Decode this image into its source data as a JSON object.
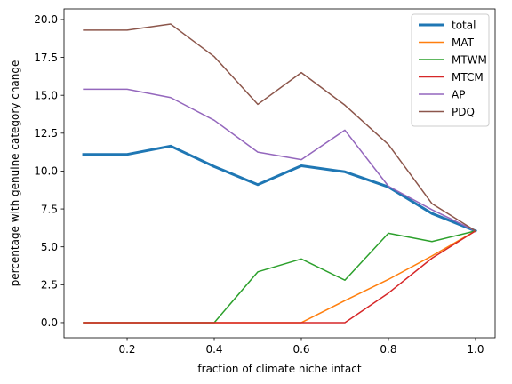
{
  "chart_data": {
    "type": "line",
    "xlabel": "fraction of climate niche intact",
    "ylabel": "percentage with genuine category change",
    "xlim": [
      0.055,
      1.045
    ],
    "ylim": [
      -1.0,
      20.7
    ],
    "x_ticks": [
      0.2,
      0.4,
      0.6,
      0.8,
      1.0
    ],
    "x_tick_labels": [
      "0.2",
      "0.4",
      "0.6",
      "0.8",
      "1.0"
    ],
    "y_ticks": [
      0.0,
      2.5,
      5.0,
      7.5,
      10.0,
      12.5,
      15.0,
      17.5,
      20.0
    ],
    "y_tick_labels": [
      "0.0",
      "2.5",
      "5.0",
      "7.5",
      "10.0",
      "12.5",
      "15.0",
      "17.5",
      "20.0"
    ],
    "grid": false,
    "legend_position": "upper-right",
    "x": [
      0.1,
      0.2,
      0.3,
      0.4,
      0.5,
      0.6,
      0.7,
      0.8,
      0.9,
      1.0
    ],
    "series": [
      {
        "name": "total",
        "color": "#1f77b4",
        "emphasis": "thick",
        "values": [
          11.1,
          11.1,
          11.65,
          10.3,
          9.1,
          10.35,
          9.95,
          8.95,
          7.2,
          6.05
        ]
      },
      {
        "name": "MAT",
        "color": "#ff7f0e",
        "emphasis": "normal",
        "values": [
          0.0,
          0.0,
          0.0,
          0.0,
          0.0,
          0.0,
          1.45,
          2.85,
          4.4,
          6.05
        ]
      },
      {
        "name": "MTWM",
        "color": "#2ca02c",
        "emphasis": "normal",
        "values": [
          0.0,
          0.0,
          0.0,
          0.0,
          3.35,
          4.2,
          2.8,
          5.9,
          5.35,
          6.05
        ]
      },
      {
        "name": "MTCM",
        "color": "#d62728",
        "emphasis": "normal",
        "values": [
          0.0,
          0.0,
          0.0,
          0.0,
          0.0,
          0.0,
          0.0,
          1.95,
          4.25,
          6.05
        ]
      },
      {
        "name": "AP",
        "color": "#9467bd",
        "emphasis": "normal",
        "values": [
          15.4,
          15.4,
          14.85,
          13.35,
          11.25,
          10.75,
          12.7,
          9.0,
          7.45,
          6.05
        ]
      },
      {
        "name": "PDQ",
        "color": "#8c564b",
        "emphasis": "normal",
        "values": [
          19.3,
          19.3,
          19.7,
          17.55,
          14.4,
          16.5,
          14.35,
          11.75,
          7.85,
          6.05
        ]
      }
    ]
  }
}
